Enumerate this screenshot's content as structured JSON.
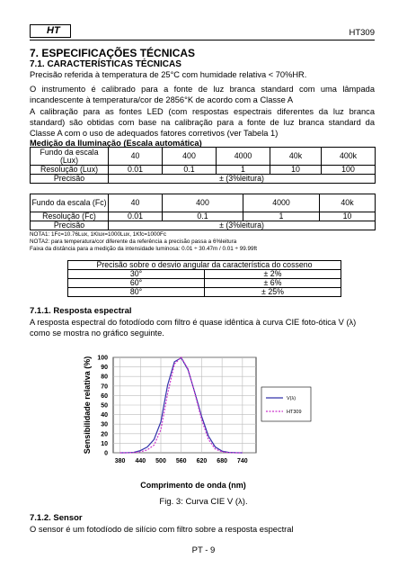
{
  "header": {
    "logo": "HT",
    "model": "HT309"
  },
  "section": {
    "title": "7. ESPECIFICAÇÕES TÉCNICAS",
    "subtitle": "7.1.  CARACTERÍSTICAS TÉCNICAS"
  },
  "paragraphs": [
    [
      "Precisão referida à temperatura de 25°C com humidade relativa < 70%HR."
    ],
    [
      "O instrumento é calibrado para a fonte de luz branca standard com uma lâmpada",
      "incandescente à temperatura/cor de 2856°K de acordo com a Classe A"
    ],
    [
      "A calibração para as fontes LED (com respostas espectrais diferentes da luz branca",
      "standard) são obtidas com base na calibração para a fonte de luz branca standard da",
      "Classe A com o uso de adequados fatores corretivos (ver Tabela 1)"
    ]
  ],
  "table1": {
    "caption": "Medição da Iluminação (Escala automática)",
    "rows": [
      [
        "Fundo da escala (Lux)",
        "40",
        "400",
        "4000",
        "40k",
        "400k"
      ],
      [
        "Resolução (Lux)",
        "0.01",
        "0.1",
        "1",
        "10",
        "100"
      ],
      [
        "Precisão",
        "± (3%leitura)"
      ]
    ]
  },
  "table2": {
    "rows": [
      [
        "Fundo da escala (Fc)",
        "40",
        "400",
        "4000",
        "40k"
      ],
      [
        "Resolução (Fc)",
        "0.01",
        "0.1",
        "1",
        "10"
      ],
      [
        "Precisão",
        "± (3%leitura)"
      ]
    ],
    "notes": [
      "NOTA1: 1Fc=10.76Lux, 1Klux=1000Lux, 1Kfc=1000Fc",
      "NOTA2: para temperatura/cor diferente da referência a precisão passa a 6%leitura",
      "Faixa da distância para a medição da intensidade luminosa: 0.01 ÷ 30.47m / 0.01 ÷ 99.99ft"
    ]
  },
  "table3": {
    "header": "Precisão sobre o desvio angular da característica do cosseno",
    "rows": [
      [
        "30°",
        "± 2%"
      ],
      [
        "60°",
        "± 6%"
      ],
      [
        "80°",
        "± 25%"
      ]
    ]
  },
  "subsection1": {
    "title": "7.1.1.    Resposta espectral",
    "lines": [
      "A resposta espectral do fotodíodo com filtro é quase idêntica à curva CIE foto-ótica V (λ)",
      "como se mostra no gráfico seguinte."
    ]
  },
  "chart_data": {
    "type": "line",
    "x_label": "Comprimento de onda (nm)",
    "y_label": "Sensibilidade relativa (%)",
    "x": [
      380,
      400,
      420,
      440,
      460,
      480,
      500,
      520,
      540,
      560,
      580,
      600,
      620,
      640,
      660,
      680,
      700,
      720,
      740
    ],
    "series": [
      {
        "name": "V(λ)",
        "color": "#3333aa",
        "dash": "solid",
        "values": [
          0,
          0.04,
          0.4,
          2.3,
          6,
          13.9,
          32.3,
          71,
          95.4,
          99.5,
          87,
          63.1,
          38.1,
          17.5,
          6.1,
          1.7,
          0.4,
          0.1,
          0
        ]
      },
      {
        "name": "HT309",
        "color": "#cc33cc",
        "dash": "dashed",
        "values": [
          0,
          0,
          0.2,
          1,
          3,
          8,
          24,
          62,
          93,
          100,
          88,
          62,
          35,
          14,
          4,
          1,
          0.2,
          0,
          0
        ]
      }
    ],
    "xlim": [
      360,
      780
    ],
    "ylim": [
      0,
      100
    ],
    "xticks": [
      380,
      440,
      500,
      560,
      620,
      680,
      740
    ],
    "yticks": [
      0,
      10,
      20,
      30,
      40,
      50,
      60,
      70,
      80,
      90,
      100
    ],
    "grid": true,
    "legend": "right"
  },
  "figure_caption": "Fig. 3: Curva CIE V (λ).",
  "subsection2": {
    "title": "7.1.2.    Sensor",
    "text": "O sensor é um fotodíodo de silício com filtro sobre a resposta espectral"
  },
  "footer": "PT - 9"
}
